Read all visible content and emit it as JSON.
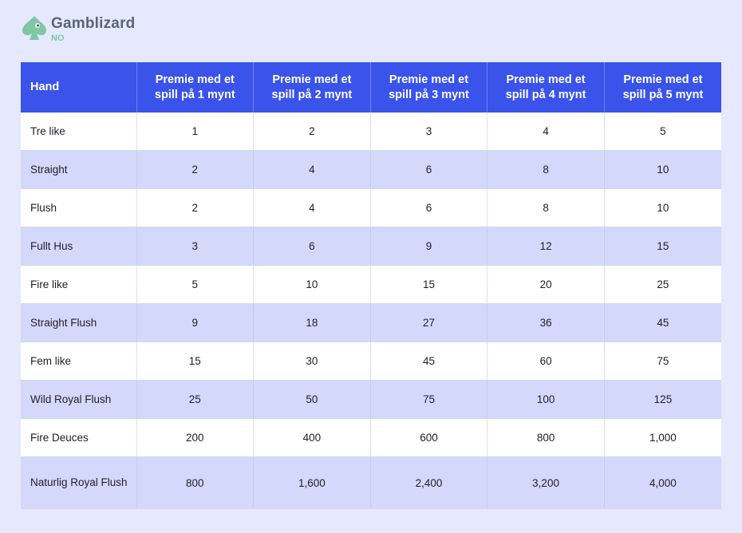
{
  "brand": {
    "name": "Gamblizard",
    "region": "NO",
    "logo_icon": "spade-lizard-icon",
    "accent_color": "#7ec8a4"
  },
  "table": {
    "header_color": "#3a53ea",
    "headers": [
      "Hand",
      "Premie med et spill på 1 mynt",
      "Premie med et spill på 2 mynt",
      "Premie med et spill på 3 mynt",
      "Premie med et spill på 4 mynt",
      "Premie med et spill på 5 mynt"
    ],
    "rows": [
      [
        "Tre like",
        "1",
        "2",
        "3",
        "4",
        "5"
      ],
      [
        "Straight",
        "2",
        "4",
        "6",
        "8",
        "10"
      ],
      [
        "Flush",
        "2",
        "4",
        "6",
        "8",
        "10"
      ],
      [
        "Fullt Hus",
        "3",
        "6",
        "9",
        "12",
        "15"
      ],
      [
        "Fire like",
        "5",
        "10",
        "15",
        "20",
        "25"
      ],
      [
        "Straight Flush",
        "9",
        "18",
        "27",
        "36",
        "45"
      ],
      [
        "Fem like",
        "15",
        "30",
        "45",
        "60",
        "75"
      ],
      [
        "Wild Royal Flush",
        "25",
        "50",
        "75",
        "100",
        "125"
      ],
      [
        "Fire Deuces",
        "200",
        "400",
        "600",
        "800",
        "1,000"
      ],
      [
        "Naturlig Royal Flush",
        "800",
        "1,600",
        "2,400",
        "3,200",
        "4,000"
      ]
    ]
  }
}
